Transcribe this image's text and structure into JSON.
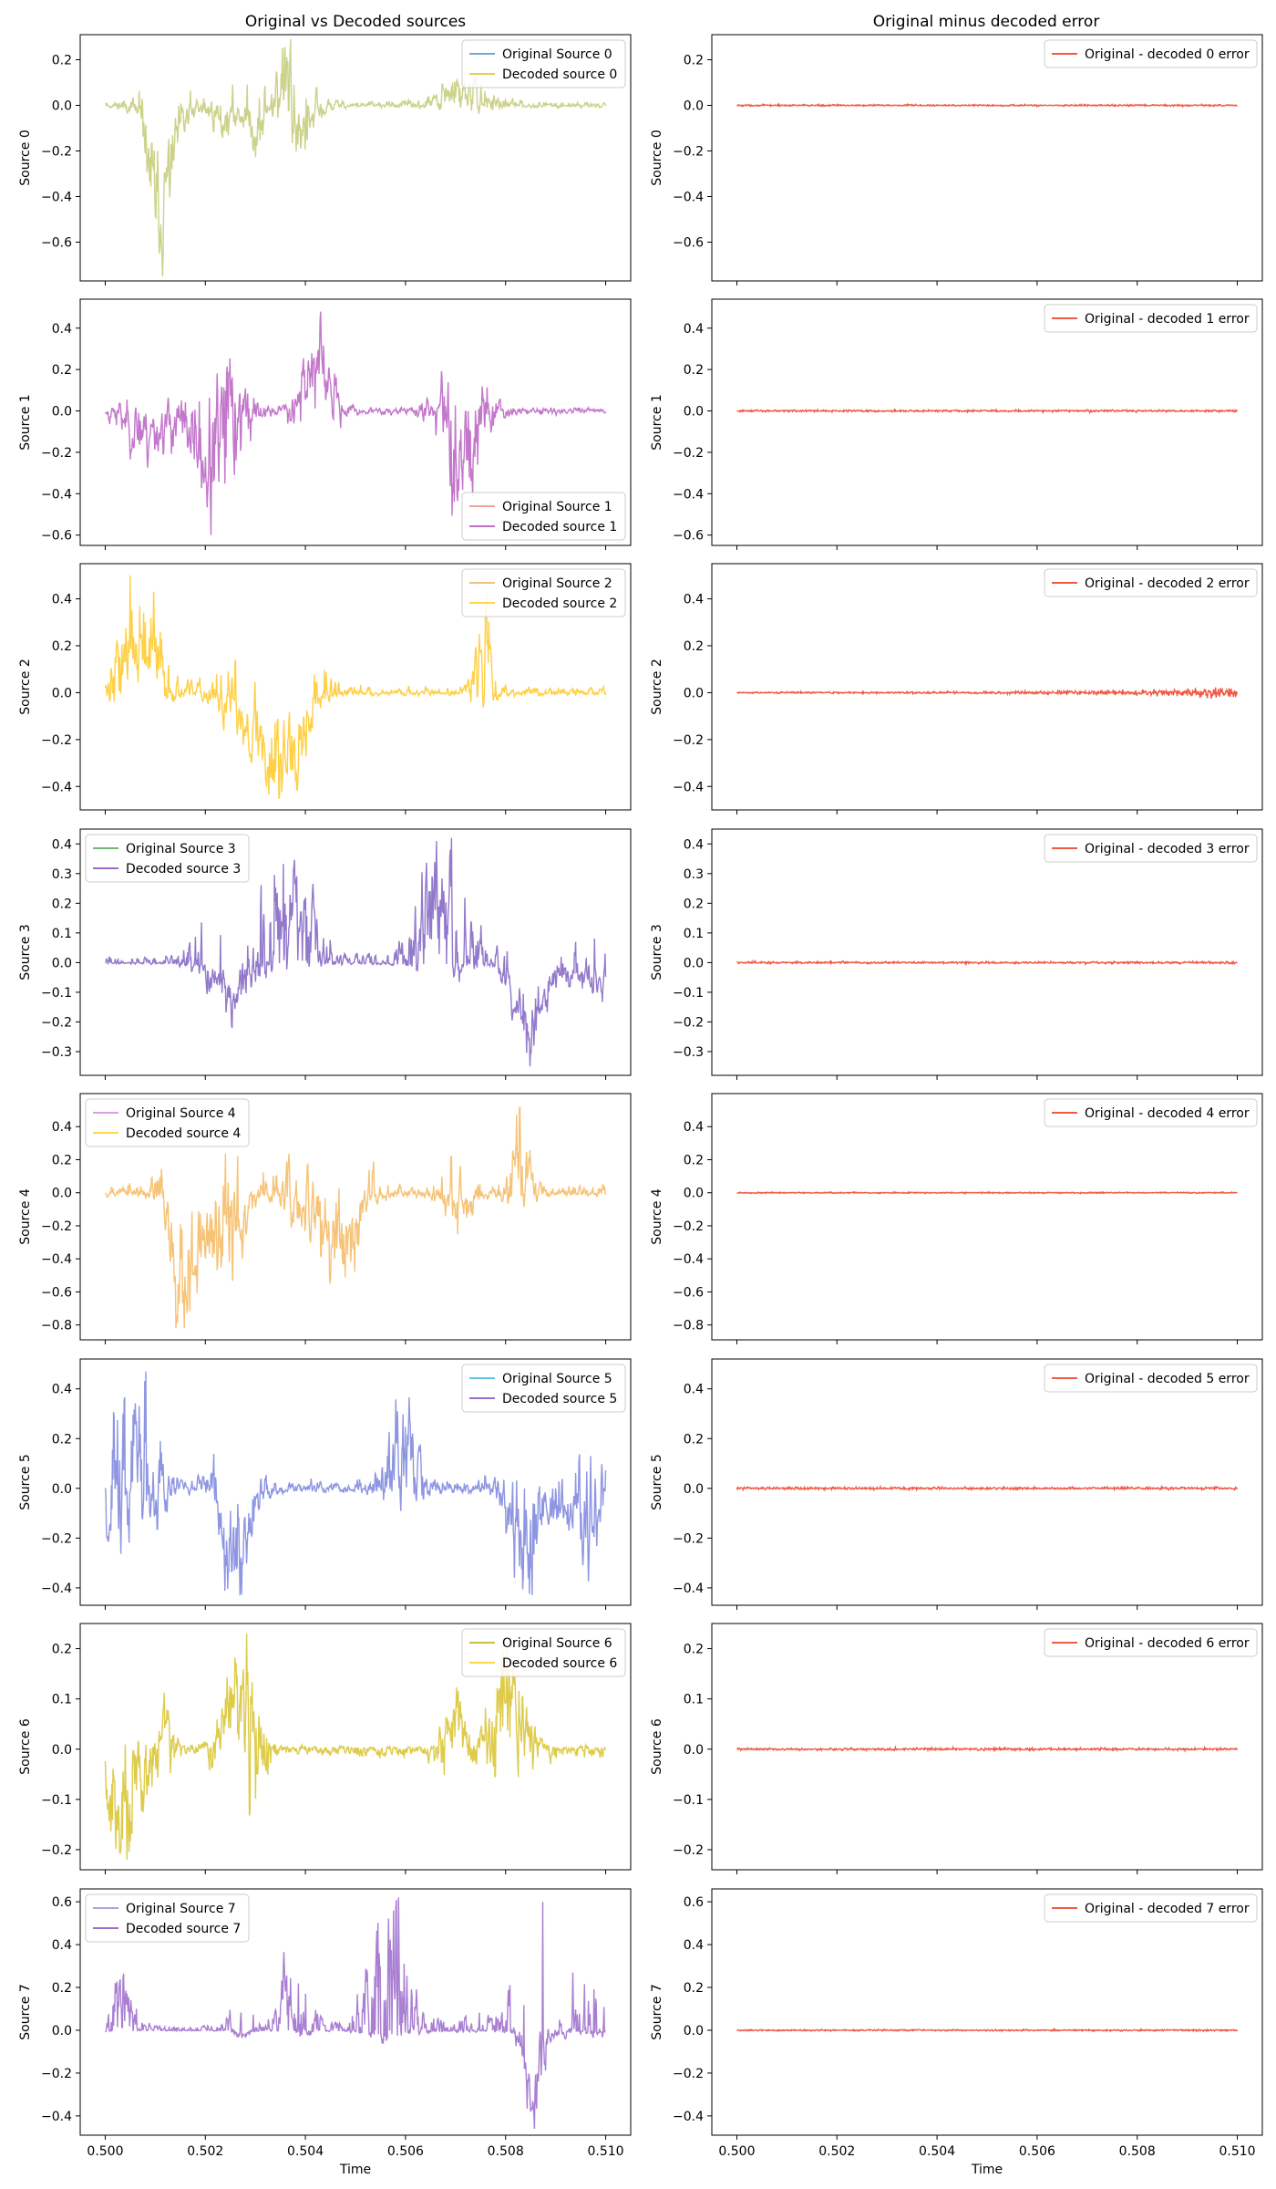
{
  "figure": {
    "left_title": "Original vs Decoded sources",
    "right_title": "Original minus decoded error",
    "xlabel": "Time",
    "xticks": [
      "0.500",
      "0.502",
      "0.504",
      "0.506",
      "0.508",
      "0.510"
    ],
    "xlim": [
      0.4995,
      0.5105
    ]
  },
  "chart_data": [
    {
      "type": "line",
      "panel": "left",
      "row": 0,
      "ylabel": "Source 0",
      "ylim": [
        -0.77,
        0.31
      ],
      "yticks": [
        0.2,
        0.0,
        -0.2,
        -0.4,
        -0.6
      ],
      "legend": "top-right",
      "series": [
        {
          "name": "Original Source 0",
          "color": "#6fa8dc"
        },
        {
          "name": "Decoded source 0",
          "color": "#e6d14a"
        }
      ],
      "fill_color": "#c8d084",
      "amplitude": 0.3,
      "min": -0.75,
      "max": 0.29,
      "seed": 11
    },
    {
      "type": "line",
      "panel": "right",
      "row": 0,
      "ylabel": "Source 0",
      "ylim": [
        -0.77,
        0.31
      ],
      "yticks": [
        0.2,
        0.0,
        -0.2,
        -0.4,
        -0.6
      ],
      "legend": "top-right",
      "series": [
        {
          "name": "Original - decoded 0 error",
          "color": "#f05a45"
        }
      ],
      "error_amplitude": 0.003
    },
    {
      "type": "line",
      "panel": "left",
      "row": 1,
      "ylabel": "Source 1",
      "ylim": [
        -0.65,
        0.54
      ],
      "yticks": [
        0.4,
        0.2,
        0.0,
        -0.2,
        -0.4,
        -0.6
      ],
      "legend": "bottom-right",
      "series": [
        {
          "name": "Original Source 1",
          "color": "#f4a39a"
        },
        {
          "name": "Decoded source 1",
          "color": "#c070c8"
        }
      ],
      "fill_color": "#c070c8",
      "amplitude": 0.25,
      "min": -0.6,
      "max": 0.48,
      "seed": 23
    },
    {
      "type": "line",
      "panel": "right",
      "row": 1,
      "ylabel": "Source 1",
      "ylim": [
        -0.65,
        0.54
      ],
      "yticks": [
        0.4,
        0.2,
        0.0,
        -0.2,
        -0.4,
        -0.6
      ],
      "legend": "top-right",
      "series": [
        {
          "name": "Original - decoded 1 error",
          "color": "#f05a45"
        }
      ],
      "error_amplitude": 0.004
    },
    {
      "type": "line",
      "panel": "left",
      "row": 2,
      "ylabel": "Source 2",
      "ylim": [
        -0.5,
        0.55
      ],
      "yticks": [
        0.4,
        0.2,
        0.0,
        -0.2,
        -0.4
      ],
      "legend": "top-right",
      "series": [
        {
          "name": "Original Source 2",
          "color": "#f0c080"
        },
        {
          "name": "Decoded source 2",
          "color": "#ffd84a"
        }
      ],
      "fill_color": "#ffcd3c",
      "amplitude": 0.25,
      "min": -0.45,
      "max": 0.5,
      "seed": 37
    },
    {
      "type": "line",
      "panel": "right",
      "row": 2,
      "ylabel": "Source 2",
      "ylim": [
        -0.5,
        0.55
      ],
      "yticks": [
        0.4,
        0.2,
        0.0,
        -0.2,
        -0.4
      ],
      "legend": "top-right",
      "series": [
        {
          "name": "Original - decoded 2 error",
          "color": "#f05a45"
        }
      ],
      "error_amplitude": 0.008
    },
    {
      "type": "line",
      "panel": "left",
      "row": 3,
      "ylabel": "Source 3",
      "ylim": [
        -0.38,
        0.45
      ],
      "yticks": [
        0.4,
        0.3,
        0.2,
        0.1,
        0.0,
        -0.1,
        -0.2,
        -0.3
      ],
      "legend": "top-left",
      "series": [
        {
          "name": "Original Source 3",
          "color": "#6fb87a"
        },
        {
          "name": "Decoded source 3",
          "color": "#9a6ec8"
        }
      ],
      "fill_color": "#8c72c8",
      "amplitude": 0.2,
      "min": -0.35,
      "max": 0.42,
      "seed": 41
    },
    {
      "type": "line",
      "panel": "right",
      "row": 3,
      "ylabel": "Source 3",
      "ylim": [
        -0.38,
        0.45
      ],
      "yticks": [
        0.4,
        0.3,
        0.2,
        0.1,
        0.0,
        -0.1,
        -0.2,
        -0.3
      ],
      "legend": "top-right",
      "series": [
        {
          "name": "Original - decoded 3 error",
          "color": "#f05a45"
        }
      ],
      "error_amplitude": 0.003
    },
    {
      "type": "line",
      "panel": "left",
      "row": 4,
      "ylabel": "Source 4",
      "ylim": [
        -0.89,
        0.6
      ],
      "yticks": [
        0.4,
        0.2,
        0.0,
        -0.2,
        -0.4,
        -0.6,
        -0.8
      ],
      "legend": "top-left",
      "series": [
        {
          "name": "Original Source 4",
          "color": "#d8a0e0"
        },
        {
          "name": "Decoded source 4",
          "color": "#ffd84a"
        }
      ],
      "fill_color": "#f5c070",
      "amplitude": 0.3,
      "min": -0.82,
      "max": 0.52,
      "seed": 53
    },
    {
      "type": "line",
      "panel": "right",
      "row": 4,
      "ylabel": "Source 4",
      "ylim": [
        -0.89,
        0.6
      ],
      "yticks": [
        0.4,
        0.2,
        0.0,
        -0.2,
        -0.4,
        -0.6,
        -0.8
      ],
      "legend": "top-right",
      "series": [
        {
          "name": "Original - decoded 4 error",
          "color": "#f05a45"
        }
      ],
      "error_amplitude": 0.003
    },
    {
      "type": "line",
      "panel": "left",
      "row": 5,
      "ylabel": "Source 5",
      "ylim": [
        -0.47,
        0.52
      ],
      "yticks": [
        0.4,
        0.2,
        0.0,
        -0.2,
        -0.4
      ],
      "legend": "top-right",
      "series": [
        {
          "name": "Original Source 5",
          "color": "#5ec8e8"
        },
        {
          "name": "Decoded source 5",
          "color": "#9a6ec8"
        }
      ],
      "fill_color": "#8890e0",
      "amplitude": 0.22,
      "min": -0.43,
      "max": 0.47,
      "seed": 67
    },
    {
      "type": "line",
      "panel": "right",
      "row": 5,
      "ylabel": "Source 5",
      "ylim": [
        -0.47,
        0.52
      ],
      "yticks": [
        0.4,
        0.2,
        0.0,
        -0.2,
        -0.4
      ],
      "legend": "top-right",
      "series": [
        {
          "name": "Original - decoded 5 error",
          "color": "#f05a45"
        }
      ],
      "error_amplitude": 0.004
    },
    {
      "type": "line",
      "panel": "left",
      "row": 6,
      "ylabel": "Source 6",
      "ylim": [
        -0.24,
        0.25
      ],
      "yticks": [
        0.2,
        0.1,
        0.0,
        -0.1,
        -0.2
      ],
      "legend": "top-right",
      "series": [
        {
          "name": "Original Source 6",
          "color": "#c8c040"
        },
        {
          "name": "Decoded source 6",
          "color": "#ffd84a"
        }
      ],
      "fill_color": "#dcc840",
      "amplitude": 0.12,
      "min": -0.22,
      "max": 0.23,
      "seed": 79
    },
    {
      "type": "line",
      "panel": "right",
      "row": 6,
      "ylabel": "Source 6",
      "ylim": [
        -0.24,
        0.25
      ],
      "yticks": [
        0.2,
        0.1,
        0.0,
        -0.1,
        -0.2
      ],
      "legend": "top-right",
      "series": [
        {
          "name": "Original - decoded 6 error",
          "color": "#f05a45"
        }
      ],
      "error_amplitude": 0.002
    },
    {
      "type": "line",
      "panel": "left",
      "row": 7,
      "ylabel": "Source 7",
      "ylim": [
        -0.49,
        0.66
      ],
      "yticks": [
        0.6,
        0.4,
        0.2,
        0.0,
        -0.2,
        -0.4
      ],
      "legend": "top-left",
      "series": [
        {
          "name": "Original Source 7",
          "color": "#b0a0d8"
        },
        {
          "name": "Decoded source 7",
          "color": "#9a6ec8"
        }
      ],
      "fill_color": "#a478d0",
      "amplitude": 0.1,
      "min": -0.46,
      "max": 0.62,
      "seed": 97
    },
    {
      "type": "line",
      "panel": "right",
      "row": 7,
      "ylabel": "Source 7",
      "ylim": [
        -0.49,
        0.66
      ],
      "yticks": [
        0.6,
        0.4,
        0.2,
        0.0,
        -0.2,
        -0.4
      ],
      "legend": "top-right",
      "series": [
        {
          "name": "Original - decoded 7 error",
          "color": "#f05a45"
        }
      ],
      "error_amplitude": 0.003
    }
  ]
}
